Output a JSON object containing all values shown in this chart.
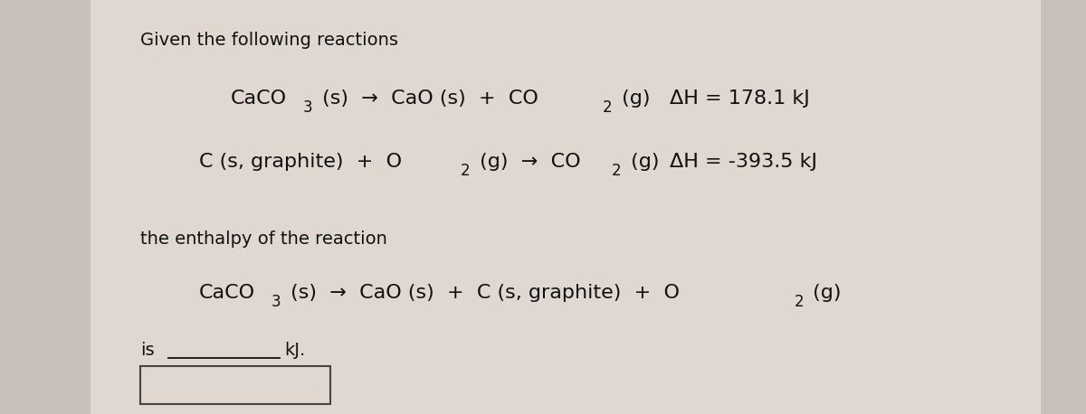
{
  "bg_color": "#c8c0b8",
  "panel_color": "#e0d8d0",
  "text_color": "#111111",
  "title": "Given the following reactions",
  "reaction1_dH": "ΔH = 178.1 kJ",
  "reaction2_dH": "ΔH = -393.5 kJ",
  "section_label": "the enthalpy of the reaction",
  "answer_label": "is",
  "answer_unit": "kJ.",
  "fontsize_main": 16,
  "fontsize_title": 14,
  "fontsize_sub": 12
}
